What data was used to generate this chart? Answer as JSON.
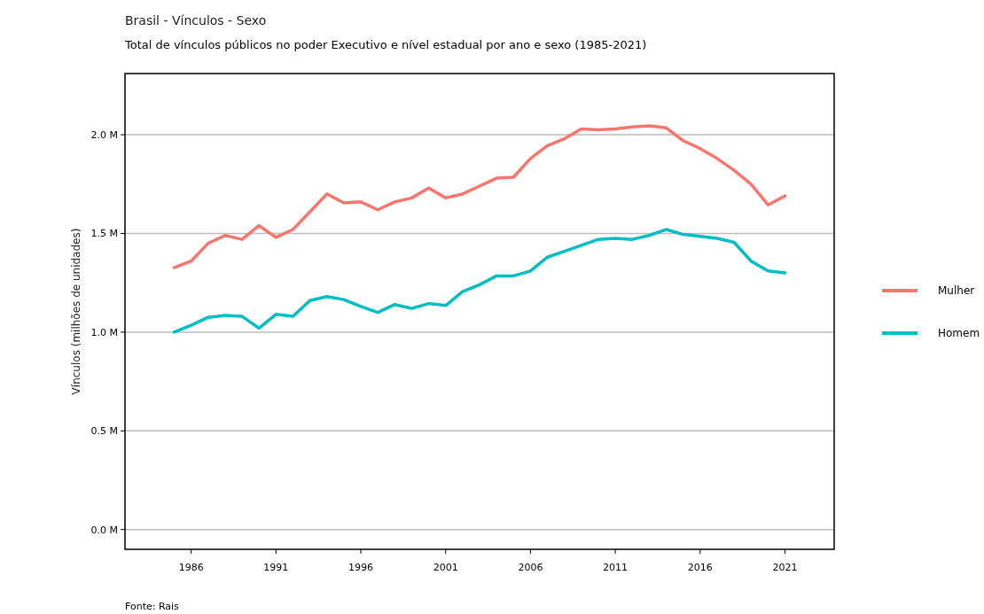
{
  "chart_data": {
    "type": "line",
    "title": "Brasil - Vínculos - Sexo",
    "subtitle": "Total de vínculos públicos no poder Executivo e nível estadual por ano e sexo (1985-2021)",
    "ylabel": "Vínculos (milhões de unidades)",
    "annotations": [
      "Fonte: Rais"
    ],
    "x": [
      1985,
      1986,
      1987,
      1988,
      1989,
      1990,
      1991,
      1992,
      1993,
      1994,
      1995,
      1996,
      1997,
      1998,
      1999,
      2000,
      2001,
      2002,
      2003,
      2004,
      2005,
      2006,
      2007,
      2008,
      2009,
      2010,
      2011,
      2012,
      2013,
      2014,
      2015,
      2016,
      2017,
      2018,
      2019,
      2020,
      2021
    ],
    "series": [
      {
        "name": "Mulher",
        "color": "#f8766d",
        "values": [
          1.327,
          1.36,
          1.45,
          1.49,
          1.47,
          1.54,
          1.48,
          1.52,
          1.61,
          1.7,
          1.655,
          1.66,
          1.62,
          1.66,
          1.68,
          1.73,
          1.68,
          1.7,
          1.74,
          1.78,
          1.785,
          1.88,
          1.945,
          1.98,
          2.03,
          2.025,
          2.03,
          2.04,
          2.045,
          2.035,
          1.97,
          1.93,
          1.88,
          1.82,
          1.75,
          1.645,
          1.69
        ]
      },
      {
        "name": "Homem",
        "color": "#00bfc4",
        "values": [
          1.0,
          1.035,
          1.075,
          1.085,
          1.08,
          1.02,
          1.09,
          1.08,
          1.16,
          1.18,
          1.165,
          1.13,
          1.1,
          1.14,
          1.12,
          1.145,
          1.135,
          1.205,
          1.24,
          1.285,
          1.285,
          1.31,
          1.38,
          1.41,
          1.44,
          1.47,
          1.475,
          1.47,
          1.49,
          1.52,
          1.495,
          1.485,
          1.475,
          1.455,
          1.36,
          1.31,
          1.3
        ]
      }
    ],
    "xlim": [
      1982.1,
      2023.9
    ],
    "xticks": [
      1986,
      1991,
      1996,
      2001,
      2006,
      2011,
      2016,
      2021
    ],
    "ylim": [
      -0.1,
      2.31
    ],
    "yticks": [
      {
        "value": 0,
        "label": "0.0 M"
      },
      {
        "value": 0.5,
        "label": "0.5 M"
      },
      {
        "value": 1,
        "label": "1.0 M"
      },
      {
        "value": 1.5,
        "label": "1.5 M"
      },
      {
        "value": 2,
        "label": "2.0 M"
      }
    ],
    "grid": "y",
    "legend": "right",
    "line_style": "solid",
    "marker": "none"
  }
}
